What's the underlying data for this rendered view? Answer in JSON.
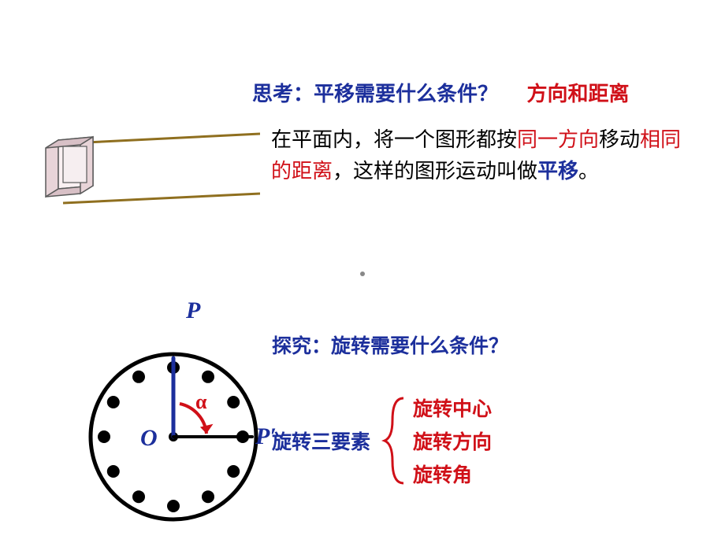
{
  "top": {
    "question_prefix": "思考：",
    "question": "平移需要什么条件？",
    "answer": "方向和距离",
    "def_p1": "在平面内，将一个图形都按",
    "def_r1": "同一方向",
    "def_p2": "移动",
    "def_r2": "相同的距离",
    "def_p3": "，这样的图形运动叫做",
    "def_b1": "平移",
    "def_p4": "。"
  },
  "bottom": {
    "question_prefix": "探究：",
    "question": "旋转需要什么条件？",
    "elements_label": "旋转三要素",
    "elements": [
      "旋转中心",
      "旋转方向",
      "旋转角"
    ]
  },
  "clock": {
    "label_P": "P",
    "label_O": "O",
    "label_Pprime": "P′",
    "label_alpha": "α",
    "dot_count": 12,
    "colors": {
      "circle_stroke": "#000000",
      "hand_stroke": "#1c2f9c",
      "arc_stroke": "#d01018",
      "dot_fill": "#000000"
    }
  },
  "box_diagram": {
    "track_color": "#8f6f1f",
    "box_face": "#faf0f2",
    "box_side1": "#e8d4d8",
    "box_side2": "#d8c0c6",
    "box_stroke": "#5a5a5a"
  },
  "colors": {
    "blue": "#1c2f9c",
    "red": "#d01018",
    "black": "#000000",
    "bg": "#ffffff"
  }
}
